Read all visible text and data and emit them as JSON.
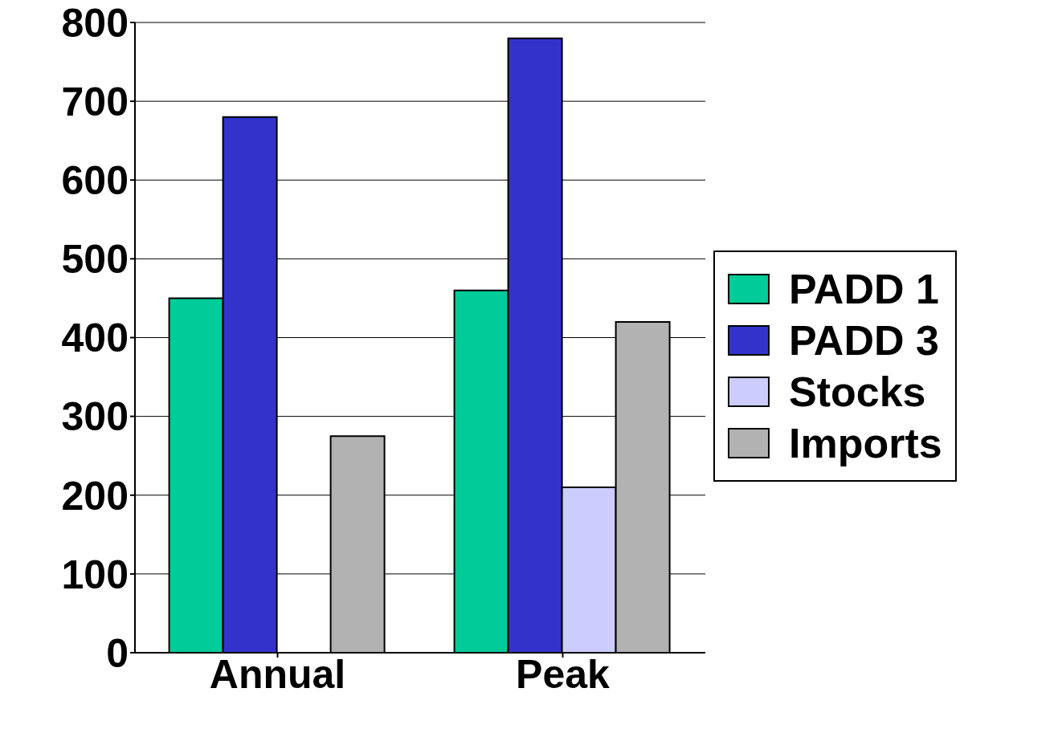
{
  "chart_data": {
    "type": "bar",
    "categories": [
      "Annual",
      "Peak"
    ],
    "series": [
      {
        "name": "PADD 1",
        "color": "#00cc99",
        "values": [
          450,
          460
        ]
      },
      {
        "name": "PADD 3",
        "color": "#3333cc",
        "values": [
          680,
          780
        ]
      },
      {
        "name": "Stocks",
        "color": "#ccccff",
        "values": [
          0,
          210
        ]
      },
      {
        "name": "Imports",
        "color": "#b2b2b2",
        "values": [
          275,
          420
        ]
      }
    ],
    "ylim": [
      0,
      800
    ],
    "yticks": [
      0,
      100,
      200,
      300,
      400,
      500,
      600,
      700,
      800
    ],
    "grid": "y",
    "legend": "right"
  }
}
